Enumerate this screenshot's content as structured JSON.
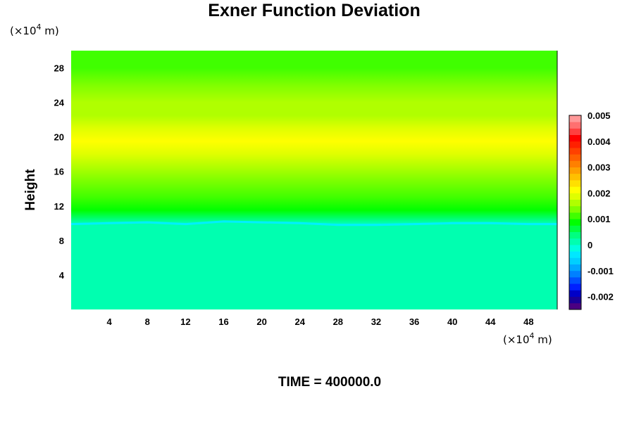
{
  "chart_data": {
    "type": "heatmap",
    "title": "Exner Function Deviation",
    "ylabel": "Height",
    "x_unit": {
      "prefix": "(×10",
      "exp": "4",
      "suffix": " m)"
    },
    "y_unit": {
      "prefix": "(×10",
      "exp": "4",
      "suffix": " m)"
    },
    "xlim": [
      0,
      51
    ],
    "ylim": [
      0,
      30
    ],
    "x_ticks": [
      4,
      8,
      12,
      16,
      20,
      24,
      28,
      32,
      36,
      40,
      44,
      48
    ],
    "y_ticks": [
      4,
      8,
      12,
      16,
      20,
      24,
      28
    ],
    "colorbar": {
      "vmin": -0.0025,
      "vmax": 0.005,
      "tick_values": [
        0.005,
        0.004,
        0.003,
        0.002,
        0.001,
        0,
        -0.001,
        -0.002
      ],
      "tick_labels": [
        "0.005",
        "0.004",
        "0.003",
        "0.002",
        "0.001",
        "0",
        "-0.001",
        "-0.002"
      ],
      "colors": [
        "#4b0082",
        "#1a0099",
        "#0000c8",
        "#0020ff",
        "#0050ff",
        "#0080ff",
        "#00a8ff",
        "#00cfff",
        "#00e8ff",
        "#00ffe0",
        "#00ffb0",
        "#00ff80",
        "#00ff40",
        "#00ff00",
        "#40ff00",
        "#7fff00",
        "#b0ff00",
        "#dfff00",
        "#ffff00",
        "#ffe000",
        "#ffc000",
        "#ffa000",
        "#ff8000",
        "#ff6000",
        "#ff4000",
        "#ff2000",
        "#ff0000",
        "#ff4040",
        "#ff7070",
        "#ff9999"
      ]
    },
    "profile_height": [
      0,
      10,
      10.4,
      11.5,
      13,
      15,
      16.5,
      18,
      19.5,
      21,
      22.5,
      24,
      26,
      28,
      30
    ],
    "profile_value": [
      8e-05,
      8e-05,
      0.0004,
      0.0008,
      0.0011,
      0.0014,
      0.0016,
      0.0018,
      0.002,
      0.0018,
      0.0016,
      0.0015,
      0.0013,
      0.0011,
      0.001
    ],
    "boundary_x": [
      0,
      4,
      8,
      12,
      16,
      20,
      24,
      28,
      32,
      36,
      40,
      44,
      48,
      51
    ],
    "boundary_y": [
      9.9,
      10.0,
      10.1,
      9.9,
      10.2,
      10.1,
      10.0,
      9.8,
      9.8,
      9.9,
      10.0,
      10.0,
      9.9,
      9.9
    ]
  },
  "footer": {
    "time_label": "TIME = 400000.0"
  }
}
